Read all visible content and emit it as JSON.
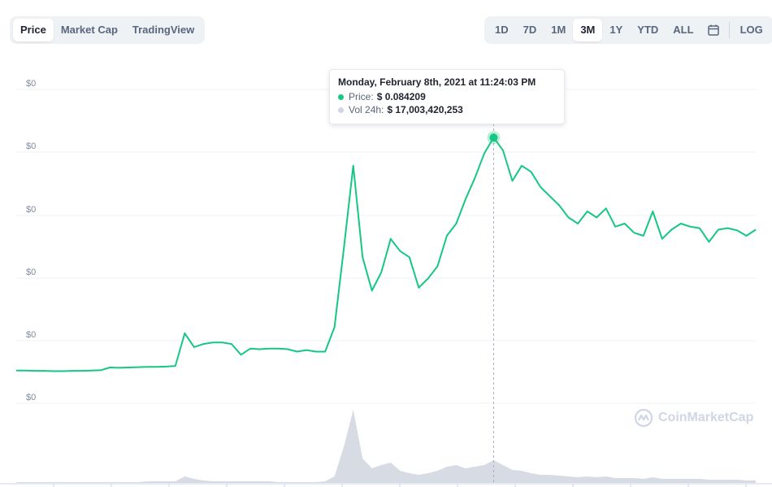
{
  "tabs_left": [
    {
      "label": "Price",
      "active": true
    },
    {
      "label": "Market Cap",
      "active": false
    },
    {
      "label": "TradingView",
      "active": false
    }
  ],
  "tabs_right": [
    {
      "label": "1D",
      "active": false
    },
    {
      "label": "7D",
      "active": false
    },
    {
      "label": "1M",
      "active": false
    },
    {
      "label": "3M",
      "active": true
    },
    {
      "label": "1Y",
      "active": false
    },
    {
      "label": "YTD",
      "active": false
    },
    {
      "label": "ALL",
      "active": false
    }
  ],
  "log_label": "LOG",
  "calendar_icon": "calendar-icon",
  "tooltip": {
    "title": "Monday, February 8th, 2021 at 11:24:03 PM",
    "price_label": "Price:",
    "price_value": "$ 0.084209",
    "vol_label": "Vol 24h:",
    "vol_value": "$ 17,003,420,253"
  },
  "watermark": "CoinMarketCap",
  "colors": {
    "price_line": "#16c784",
    "volume": "#d7dbe4",
    "grid": "#eff2f5",
    "axis_text": "#808a9d"
  },
  "chart_data": {
    "type": "line",
    "yticks": [
      "$0",
      "$0",
      "$0",
      "$0",
      "$0",
      "$0"
    ],
    "ylim": [
      0,
      0.1
    ],
    "grid": true,
    "price_series": [
      0.0078,
      0.0078,
      0.0077,
      0.0077,
      0.0076,
      0.0076,
      0.0077,
      0.0077,
      0.0078,
      0.0079,
      0.0088,
      0.0087,
      0.0088,
      0.0089,
      0.009,
      0.009,
      0.0091,
      0.0093,
      0.02,
      0.0155,
      0.0165,
      0.017,
      0.017,
      0.0165,
      0.013,
      0.015,
      0.0148,
      0.015,
      0.015,
      0.0148,
      0.014,
      0.0145,
      0.014,
      0.014,
      0.022,
      0.048,
      0.075,
      0.045,
      0.034,
      0.04,
      0.051,
      0.047,
      0.045,
      0.035,
      0.038,
      0.042,
      0.052,
      0.056,
      0.064,
      0.071,
      0.079,
      0.0842,
      0.08,
      0.07,
      0.075,
      0.073,
      0.068,
      0.065,
      0.062,
      0.058,
      0.056,
      0.06,
      0.058,
      0.061,
      0.055,
      0.056,
      0.053,
      0.052,
      0.06,
      0.051,
      0.054,
      0.056,
      0.055,
      0.0545,
      0.05,
      0.054,
      0.0545,
      0.0538,
      0.052,
      0.054
    ],
    "volume_series": [
      1,
      1,
      1,
      1,
      1,
      1,
      1,
      1,
      1,
      1,
      1,
      1,
      1,
      1,
      2,
      2,
      2,
      2,
      8,
      5,
      3,
      2,
      2,
      2,
      2,
      2,
      2,
      2,
      1,
      1,
      1,
      1,
      1,
      2,
      8,
      45,
      90,
      30,
      18,
      22,
      25,
      15,
      12,
      10,
      12,
      15,
      20,
      22,
      18,
      20,
      22,
      28,
      22,
      16,
      15,
      12,
      10,
      10,
      9,
      8,
      7,
      8,
      7,
      8,
      6,
      6,
      6,
      5,
      7,
      5,
      5,
      5,
      5,
      5,
      4,
      4,
      4,
      4,
      3,
      3
    ],
    "highlight_index": 51
  }
}
